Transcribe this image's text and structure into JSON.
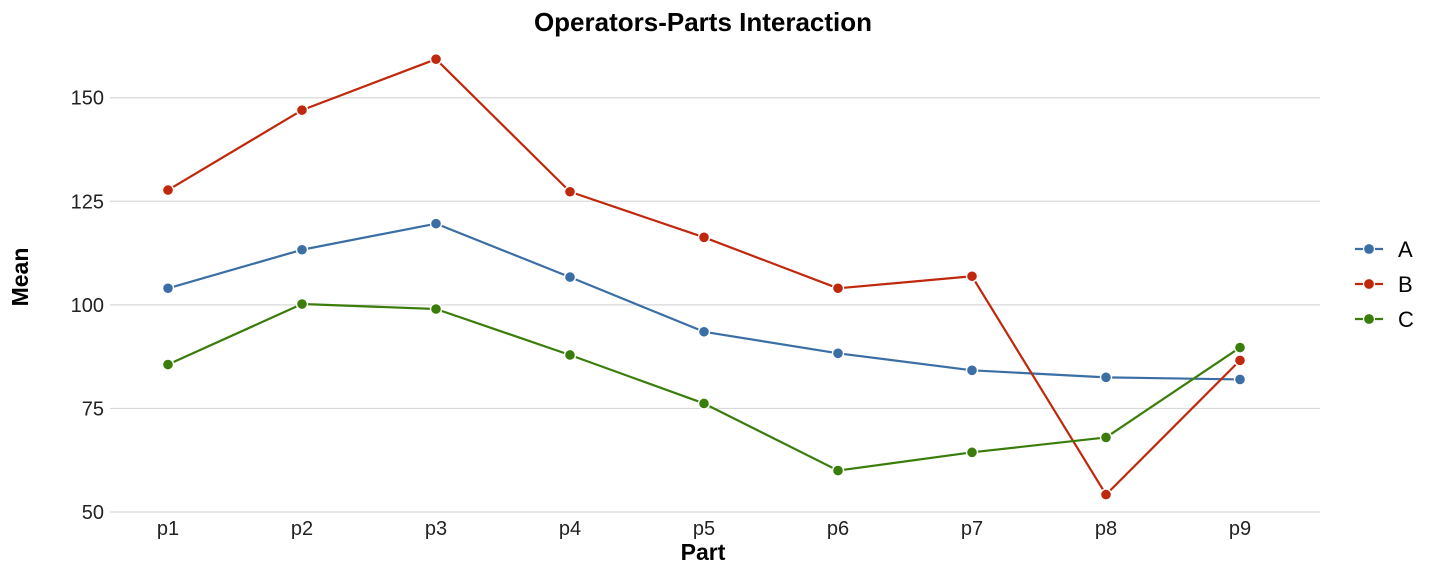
{
  "chart_data": {
    "type": "line",
    "title": "Operators-Parts Interaction",
    "xlabel": "Part",
    "ylabel": "Mean",
    "categories": [
      "p1",
      "p2",
      "p3",
      "p4",
      "p5",
      "p6",
      "p7",
      "p8",
      "p9"
    ],
    "ylim": [
      50,
      162
    ],
    "yticks": [
      50,
      75,
      100,
      125,
      150
    ],
    "grid": true,
    "legend_position": "right",
    "series": [
      {
        "name": "A",
        "color": "#3A6EA5",
        "values": [
          104.0,
          113.3,
          119.6,
          106.7,
          93.5,
          88.3,
          84.2,
          82.5,
          82.0
        ]
      },
      {
        "name": "B",
        "color": "#C0280C",
        "values": [
          127.7,
          147.0,
          159.3,
          127.3,
          116.3,
          104.0,
          106.9,
          54.2,
          86.6
        ]
      },
      {
        "name": "C",
        "color": "#3A7D0A",
        "values": [
          85.6,
          100.2,
          99.0,
          87.9,
          76.2,
          60.0,
          64.4,
          68.0,
          89.7
        ]
      }
    ]
  }
}
